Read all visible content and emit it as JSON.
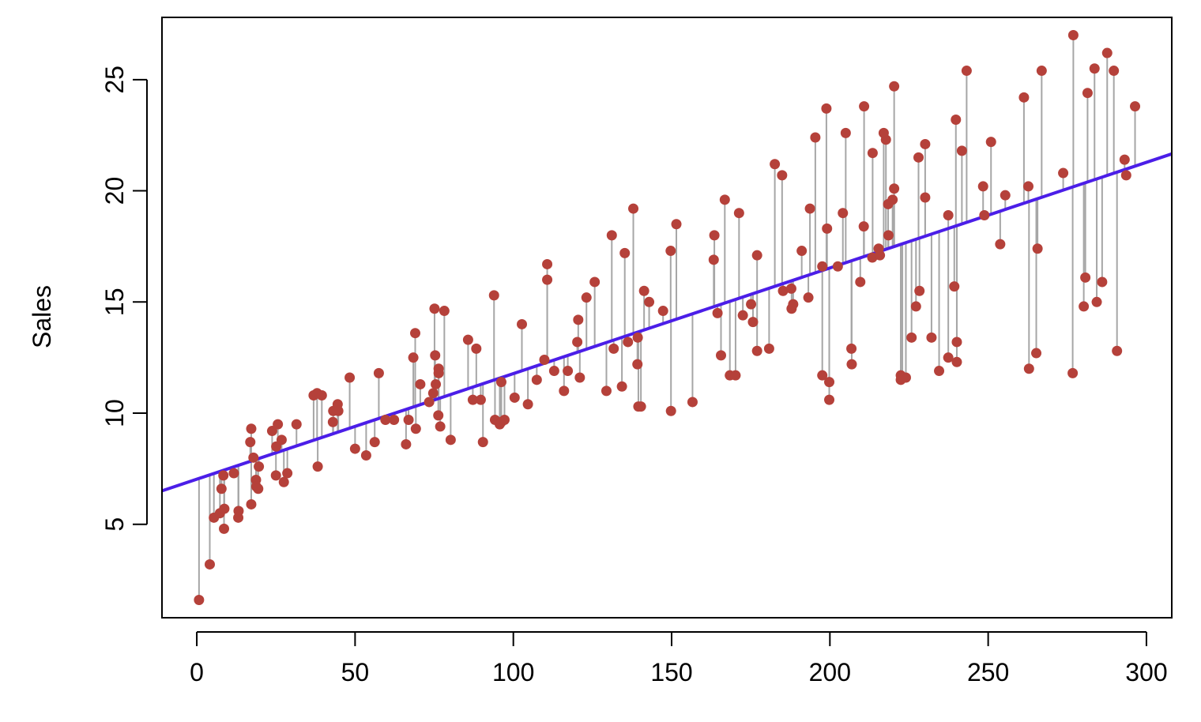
{
  "chart_data": {
    "type": "scatter",
    "title": "",
    "xlabel": "",
    "ylabel": "Sales",
    "xlim": [
      -11,
      308
    ],
    "ylim": [
      0.8,
      27.8
    ],
    "x_ticks": [
      0,
      50,
      100,
      150,
      200,
      250,
      300
    ],
    "y_ticks": [
      5,
      10,
      15,
      20,
      25
    ],
    "x_tick_labels": [
      "0",
      "50",
      "100",
      "150",
      "200",
      "250",
      "300"
    ],
    "y_tick_labels": [
      "5",
      "10",
      "15",
      "20",
      "25"
    ],
    "grid": false,
    "legend": "none",
    "colors": {
      "points": "#b5413a",
      "fit_line": "#4b1ee8",
      "residuals": "#a6a6a6",
      "axes": "#000000"
    },
    "fit_line": {
      "intercept": 7.03,
      "slope": 0.0475
    },
    "points": [
      [
        0.7,
        1.6
      ],
      [
        4.1,
        3.2
      ],
      [
        5.4,
        5.3
      ],
      [
        7.3,
        5.5
      ],
      [
        7.8,
        6.6
      ],
      [
        8.4,
        7.2
      ],
      [
        8.6,
        4.8
      ],
      [
        8.7,
        5.7
      ],
      [
        11.7,
        7.3
      ],
      [
        13.1,
        5.3
      ],
      [
        13.2,
        5.6
      ],
      [
        16.9,
        8.7
      ],
      [
        17.2,
        5.9
      ],
      [
        17.2,
        9.3
      ],
      [
        17.9,
        8.0
      ],
      [
        18.7,
        7.0
      ],
      [
        18.8,
        6.7
      ],
      [
        19.4,
        6.6
      ],
      [
        19.6,
        7.6
      ],
      [
        23.8,
        9.2
      ],
      [
        25.0,
        7.2
      ],
      [
        25.1,
        8.5
      ],
      [
        25.6,
        9.5
      ],
      [
        26.8,
        8.8
      ],
      [
        27.5,
        6.9
      ],
      [
        28.6,
        7.3
      ],
      [
        31.5,
        9.5
      ],
      [
        36.9,
        10.8
      ],
      [
        38.0,
        10.9
      ],
      [
        38.2,
        7.6
      ],
      [
        39.5,
        10.8
      ],
      [
        43.0,
        9.6
      ],
      [
        43.1,
        10.1
      ],
      [
        44.5,
        10.4
      ],
      [
        44.7,
        10.1
      ],
      [
        48.3,
        11.6
      ],
      [
        50.0,
        8.4
      ],
      [
        53.5,
        8.1
      ],
      [
        56.2,
        8.7
      ],
      [
        57.5,
        11.8
      ],
      [
        59.6,
        9.7
      ],
      [
        62.3,
        9.7
      ],
      [
        66.1,
        8.6
      ],
      [
        66.9,
        9.7
      ],
      [
        68.4,
        12.5
      ],
      [
        69.0,
        13.6
      ],
      [
        69.2,
        9.3
      ],
      [
        70.6,
        11.3
      ],
      [
        73.4,
        10.5
      ],
      [
        74.7,
        10.9
      ],
      [
        75.1,
        14.7
      ],
      [
        75.3,
        12.6
      ],
      [
        75.5,
        11.3
      ],
      [
        76.3,
        9.9
      ],
      [
        76.4,
        12.0
      ],
      [
        76.4,
        11.8
      ],
      [
        76.9,
        9.4
      ],
      [
        78.2,
        14.6
      ],
      [
        80.2,
        8.8
      ],
      [
        85.7,
        13.3
      ],
      [
        87.2,
        10.6
      ],
      [
        88.3,
        12.9
      ],
      [
        89.7,
        10.6
      ],
      [
        90.4,
        8.7
      ],
      [
        93.9,
        15.3
      ],
      [
        94.2,
        9.7
      ],
      [
        95.7,
        9.5
      ],
      [
        96.2,
        11.4
      ],
      [
        96.2,
        9.6
      ],
      [
        97.2,
        9.7
      ],
      [
        100.4,
        10.7
      ],
      [
        102.7,
        14.0
      ],
      [
        104.6,
        10.4
      ],
      [
        107.4,
        11.5
      ],
      [
        109.8,
        12.4
      ],
      [
        110.7,
        16.0
      ],
      [
        110.7,
        16.7
      ],
      [
        112.9,
        11.9
      ],
      [
        116.0,
        11.0
      ],
      [
        117.2,
        11.9
      ],
      [
        120.2,
        13.2
      ],
      [
        120.5,
        14.2
      ],
      [
        121.0,
        11.6
      ],
      [
        123.1,
        15.2
      ],
      [
        125.7,
        15.9
      ],
      [
        129.4,
        11.0
      ],
      [
        131.1,
        18.0
      ],
      [
        131.7,
        12.9
      ],
      [
        134.3,
        11.2
      ],
      [
        135.2,
        17.2
      ],
      [
        136.2,
        13.2
      ],
      [
        137.9,
        19.2
      ],
      [
        139.2,
        12.2
      ],
      [
        139.3,
        13.4
      ],
      [
        139.5,
        10.3
      ],
      [
        140.3,
        10.3
      ],
      [
        141.3,
        15.5
      ],
      [
        142.9,
        15.0
      ],
      [
        147.3,
        14.6
      ],
      [
        149.7,
        17.3
      ],
      [
        149.8,
        10.1
      ],
      [
        151.5,
        18.5
      ],
      [
        156.6,
        10.5
      ],
      [
        163.3,
        16.9
      ],
      [
        163.5,
        18.0
      ],
      [
        164.5,
        14.5
      ],
      [
        165.6,
        12.6
      ],
      [
        166.8,
        19.6
      ],
      [
        168.4,
        11.7
      ],
      [
        170.2,
        11.7
      ],
      [
        171.3,
        19.0
      ],
      [
        172.5,
        14.4
      ],
      [
        175.1,
        14.9
      ],
      [
        175.7,
        14.1
      ],
      [
        177.0,
        17.1
      ],
      [
        177.0,
        12.8
      ],
      [
        180.8,
        12.9
      ],
      [
        182.6,
        21.2
      ],
      [
        184.9,
        20.7
      ],
      [
        185.2,
        15.5
      ],
      [
        187.8,
        15.6
      ],
      [
        187.9,
        14.7
      ],
      [
        188.4,
        14.9
      ],
      [
        191.1,
        17.3
      ],
      [
        193.2,
        15.2
      ],
      [
        193.7,
        19.2
      ],
      [
        195.4,
        22.4
      ],
      [
        197.6,
        11.7
      ],
      [
        197.6,
        16.6
      ],
      [
        198.9,
        23.7
      ],
      [
        199.1,
        18.3
      ],
      [
        199.8,
        11.4
      ],
      [
        199.8,
        10.6
      ],
      [
        202.5,
        16.6
      ],
      [
        204.1,
        19.0
      ],
      [
        205.0,
        22.6
      ],
      [
        206.8,
        12.9
      ],
      [
        206.9,
        12.2
      ],
      [
        209.6,
        15.9
      ],
      [
        210.7,
        18.4
      ],
      [
        210.8,
        23.8
      ],
      [
        213.4,
        17.0
      ],
      [
        213.5,
        21.7
      ],
      [
        215.4,
        17.4
      ],
      [
        215.8,
        17.1
      ],
      [
        217.7,
        22.3
      ],
      [
        218.4,
        19.4
      ],
      [
        218.5,
        18.0
      ],
      [
        219.8,
        19.6
      ],
      [
        220.3,
        20.1
      ],
      [
        220.3,
        24.7
      ],
      [
        222.4,
        11.5
      ],
      [
        222.4,
        11.7
      ],
      [
        224.0,
        11.6
      ],
      [
        225.8,
        13.4
      ],
      [
        227.2,
        14.8
      ],
      [
        228.0,
        21.5
      ],
      [
        228.3,
        15.5
      ],
      [
        230.1,
        19.7
      ],
      [
        230.1,
        22.1
      ],
      [
        232.1,
        13.4
      ],
      [
        234.5,
        11.9
      ],
      [
        237.4,
        12.5
      ],
      [
        237.4,
        18.9
      ],
      [
        239.3,
        15.7
      ],
      [
        239.8,
        23.2
      ],
      [
        240.1,
        12.3
      ],
      [
        240.1,
        13.2
      ],
      [
        241.7,
        21.8
      ],
      [
        243.2,
        25.4
      ],
      [
        248.4,
        20.2
      ],
      [
        248.8,
        18.9
      ],
      [
        250.9,
        22.2
      ],
      [
        253.8,
        17.6
      ],
      [
        255.4,
        19.8
      ],
      [
        261.3,
        24.2
      ],
      [
        262.7,
        20.2
      ],
      [
        262.9,
        12.0
      ],
      [
        265.2,
        12.7
      ],
      [
        265.6,
        17.4
      ],
      [
        266.9,
        25.4
      ],
      [
        273.7,
        20.8
      ],
      [
        276.9,
        27.0
      ],
      [
        276.7,
        11.8
      ],
      [
        280.2,
        14.8
      ],
      [
        280.7,
        16.1
      ],
      [
        281.4,
        24.4
      ],
      [
        283.6,
        25.5
      ],
      [
        284.3,
        15.0
      ],
      [
        286.0,
        15.9
      ],
      [
        287.6,
        26.2
      ],
      [
        289.7,
        25.4
      ],
      [
        290.7,
        12.8
      ],
      [
        293.1,
        21.4
      ],
      [
        293.6,
        20.7
      ],
      [
        296.4,
        23.8
      ],
      [
        217.0,
        22.6
      ],
      [
        222.9,
        11.6
      ]
    ]
  }
}
